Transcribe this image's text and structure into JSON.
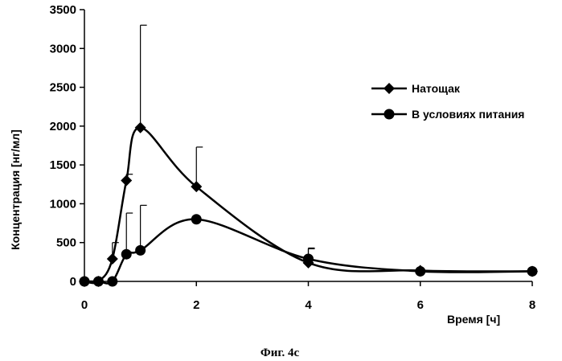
{
  "chart_data": {
    "type": "line",
    "caption": "Фиг. 4c",
    "xlabel": "Время [ч]",
    "ylabel": "Концентрация [нг/мл]",
    "xlim": [
      0,
      8
    ],
    "ylim": [
      0,
      3500
    ],
    "xticks": [
      0,
      2,
      4,
      6,
      8
    ],
    "yticks": [
      0,
      500,
      1000,
      1500,
      2000,
      2500,
      3000,
      3500
    ],
    "grid": false,
    "legend_position": "right",
    "series": [
      {
        "name": "Натощак",
        "marker": "diamond",
        "color": "#000000",
        "x": [
          0,
          0.25,
          0.5,
          0.75,
          1,
          2,
          4,
          6,
          8
        ],
        "y": [
          0,
          0,
          290,
          1300,
          1980,
          1220,
          240,
          140,
          130
        ],
        "error_upper": [
          null,
          null,
          500,
          1380,
          3300,
          1730,
          420,
          null,
          null
        ]
      },
      {
        "name": "В условиях питания",
        "marker": "circle",
        "color": "#000000",
        "x": [
          0,
          0.25,
          0.5,
          0.75,
          1,
          2,
          4,
          6,
          8
        ],
        "y": [
          0,
          0,
          0,
          350,
          400,
          800,
          290,
          130,
          130
        ],
        "error_upper": [
          null,
          null,
          null,
          880,
          980,
          null,
          430,
          null,
          null
        ]
      }
    ]
  }
}
